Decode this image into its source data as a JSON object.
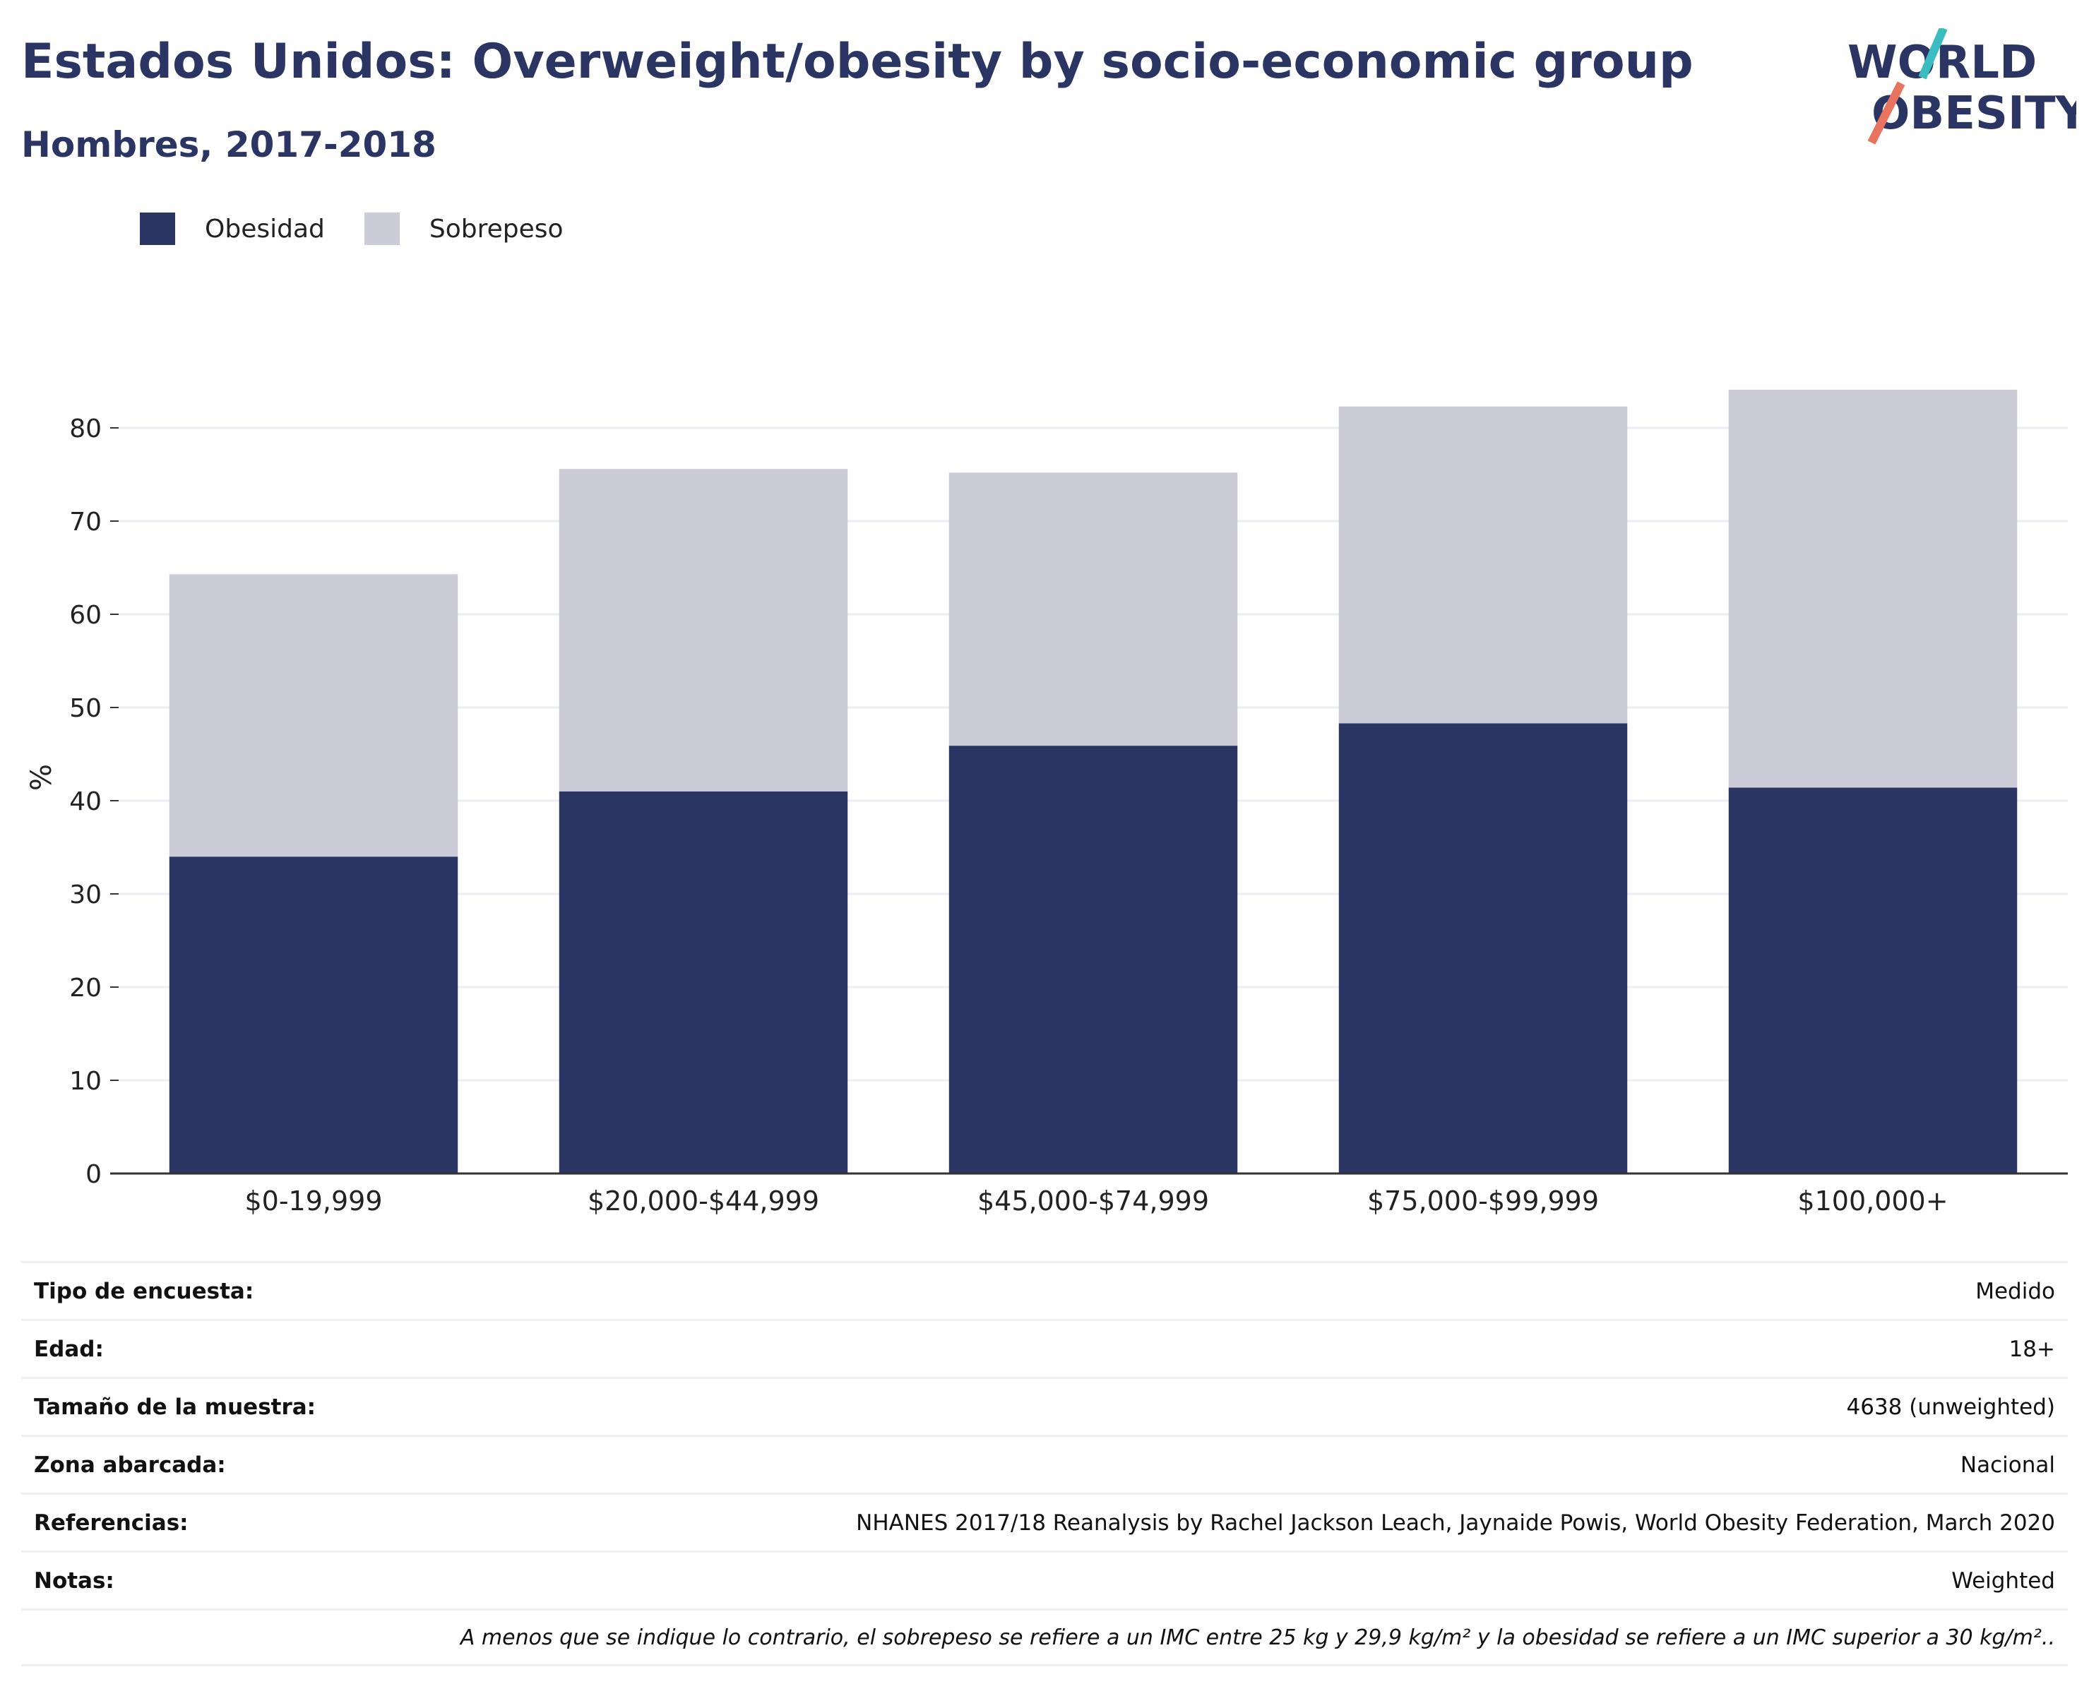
{
  "header": {
    "title": "Estados Unidos: Overweight/obesity by socio-economic group",
    "subtitle": "Hombres, 2017-2018"
  },
  "logo": {
    "line1": "WORLD",
    "line2": "OBESITY"
  },
  "colors": {
    "obesity": "#2a3563",
    "overweight": "#cbccd8",
    "text": "#2a3563",
    "grid": "#eceef3",
    "axis": "#333333",
    "logo_teal": "#3bbcc0",
    "logo_coral": "#e8735e"
  },
  "chart_data": {
    "type": "bar",
    "stacked": true,
    "categories": [
      "$0-19,999",
      "$20,000-$44,999",
      "$45,000-$74,999",
      "$75,000-$99,999",
      "$100,000+"
    ],
    "series": [
      {
        "name": "Obesidad",
        "values": [
          34.0,
          41.0,
          45.9,
          48.3,
          41.4
        ]
      },
      {
        "name": "Sobrepeso",
        "values": [
          30.3,
          34.6,
          29.3,
          34.0,
          42.7
        ]
      }
    ],
    "ylabel": "%",
    "ylim": [
      0,
      85
    ],
    "yticks": [
      0,
      10,
      20,
      30,
      40,
      50,
      60,
      70,
      80
    ],
    "grid": true,
    "legend_position": "top-left"
  },
  "legend": {
    "obesity_label": "Obesidad",
    "overweight_label": "Sobrepeso"
  },
  "info": [
    {
      "label": "Tipo de encuesta:",
      "value": "Medido"
    },
    {
      "label": "Edad:",
      "value": "18+"
    },
    {
      "label": "Tamaño de la muestra:",
      "value": "4638 (unweighted)"
    },
    {
      "label": "Zona abarcada:",
      "value": "Nacional"
    },
    {
      "label": "Referencias:",
      "value": "NHANES 2017/18 Reanalysis by Rachel Jackson Leach, Jaynaide Powis, World Obesity Federation, March 2020"
    },
    {
      "label": "Notas:",
      "value": "Weighted"
    }
  ],
  "footnote": "A menos que se indique lo contrario, el sobrepeso se refiere a un IMC entre 25 kg y 29,9 kg/m² y la obesidad se refiere a un IMC superior a 30 kg/m².."
}
